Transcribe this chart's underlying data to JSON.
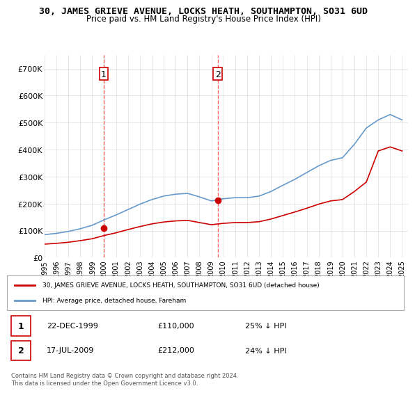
{
  "title": "30, JAMES GRIEVE AVENUE, LOCKS HEATH, SOUTHAMPTON, SO31 6UD",
  "subtitle": "Price paid vs. HM Land Registry's House Price Index (HPI)",
  "legend_line1": "30, JAMES GRIEVE AVENUE, LOCKS HEATH, SOUTHAMPTON, SO31 6UD (detached house)",
  "legend_line2": "HPI: Average price, detached house, Fareham",
  "table": [
    {
      "num": "1",
      "date": "22-DEC-1999",
      "price": "£110,000",
      "pct": "25% ↓ HPI"
    },
    {
      "num": "2",
      "date": "17-JUL-2009",
      "price": "£212,000",
      "pct": "24% ↓ HPI"
    }
  ],
  "footnote": "Contains HM Land Registry data © Crown copyright and database right 2024.\nThis data is licensed under the Open Government Licence v3.0.",
  "sale_color": "#cc0000",
  "hpi_color": "#6699cc",
  "vline_color": "#ff6666",
  "marker_color": "#cc0000",
  "sale1_x": 1999.97,
  "sale1_y": 110000,
  "sale2_x": 2009.54,
  "sale2_y": 212000,
  "ylim": [
    0,
    750000
  ],
  "xlim": [
    1995.0,
    2025.5
  ],
  "yticks": [
    0,
    100000,
    200000,
    300000,
    400000,
    500000,
    600000,
    700000
  ],
  "ytick_labels": [
    "£0",
    "£100K",
    "£200K",
    "£300K",
    "£400K",
    "£500K",
    "£600K",
    "£700K"
  ],
  "xtick_years": [
    1995,
    1996,
    1997,
    1998,
    1999,
    2000,
    2001,
    2002,
    2003,
    2004,
    2005,
    2006,
    2007,
    2008,
    2009,
    2010,
    2011,
    2012,
    2013,
    2014,
    2015,
    2016,
    2017,
    2018,
    2019,
    2020,
    2021,
    2022,
    2023,
    2024,
    2025
  ],
  "hpi_years": [
    1995,
    1996,
    1997,
    1998,
    1999,
    2000,
    2001,
    2002,
    2003,
    2004,
    2005,
    2006,
    2007,
    2008,
    2009,
    2010,
    2011,
    2012,
    2013,
    2014,
    2015,
    2016,
    2017,
    2018,
    2019,
    2020,
    2021,
    2022,
    2023,
    2024,
    2025
  ],
  "hpi_values": [
    85000,
    90000,
    97000,
    107000,
    120000,
    140000,
    158000,
    178000,
    198000,
    215000,
    228000,
    235000,
    238000,
    225000,
    210000,
    218000,
    222000,
    222000,
    228000,
    245000,
    268000,
    290000,
    315000,
    340000,
    360000,
    370000,
    420000,
    480000,
    510000,
    530000,
    510000
  ],
  "red_years": [
    1995,
    1996,
    1997,
    1998,
    1999,
    2000,
    2001,
    2002,
    2003,
    2004,
    2005,
    2006,
    2007,
    2008,
    2009,
    2010,
    2011,
    2012,
    2013,
    2014,
    2015,
    2016,
    2017,
    2018,
    2019,
    2020,
    2021,
    2022,
    2023,
    2024,
    2025
  ],
  "red_values": [
    50000,
    53000,
    57000,
    63000,
    70000,
    82000,
    92000,
    104000,
    115000,
    125000,
    132000,
    136000,
    138000,
    130000,
    122000,
    127000,
    130000,
    130000,
    133000,
    143000,
    156000,
    169000,
    183000,
    198000,
    210000,
    215000,
    245000,
    280000,
    395000,
    410000,
    395000
  ]
}
